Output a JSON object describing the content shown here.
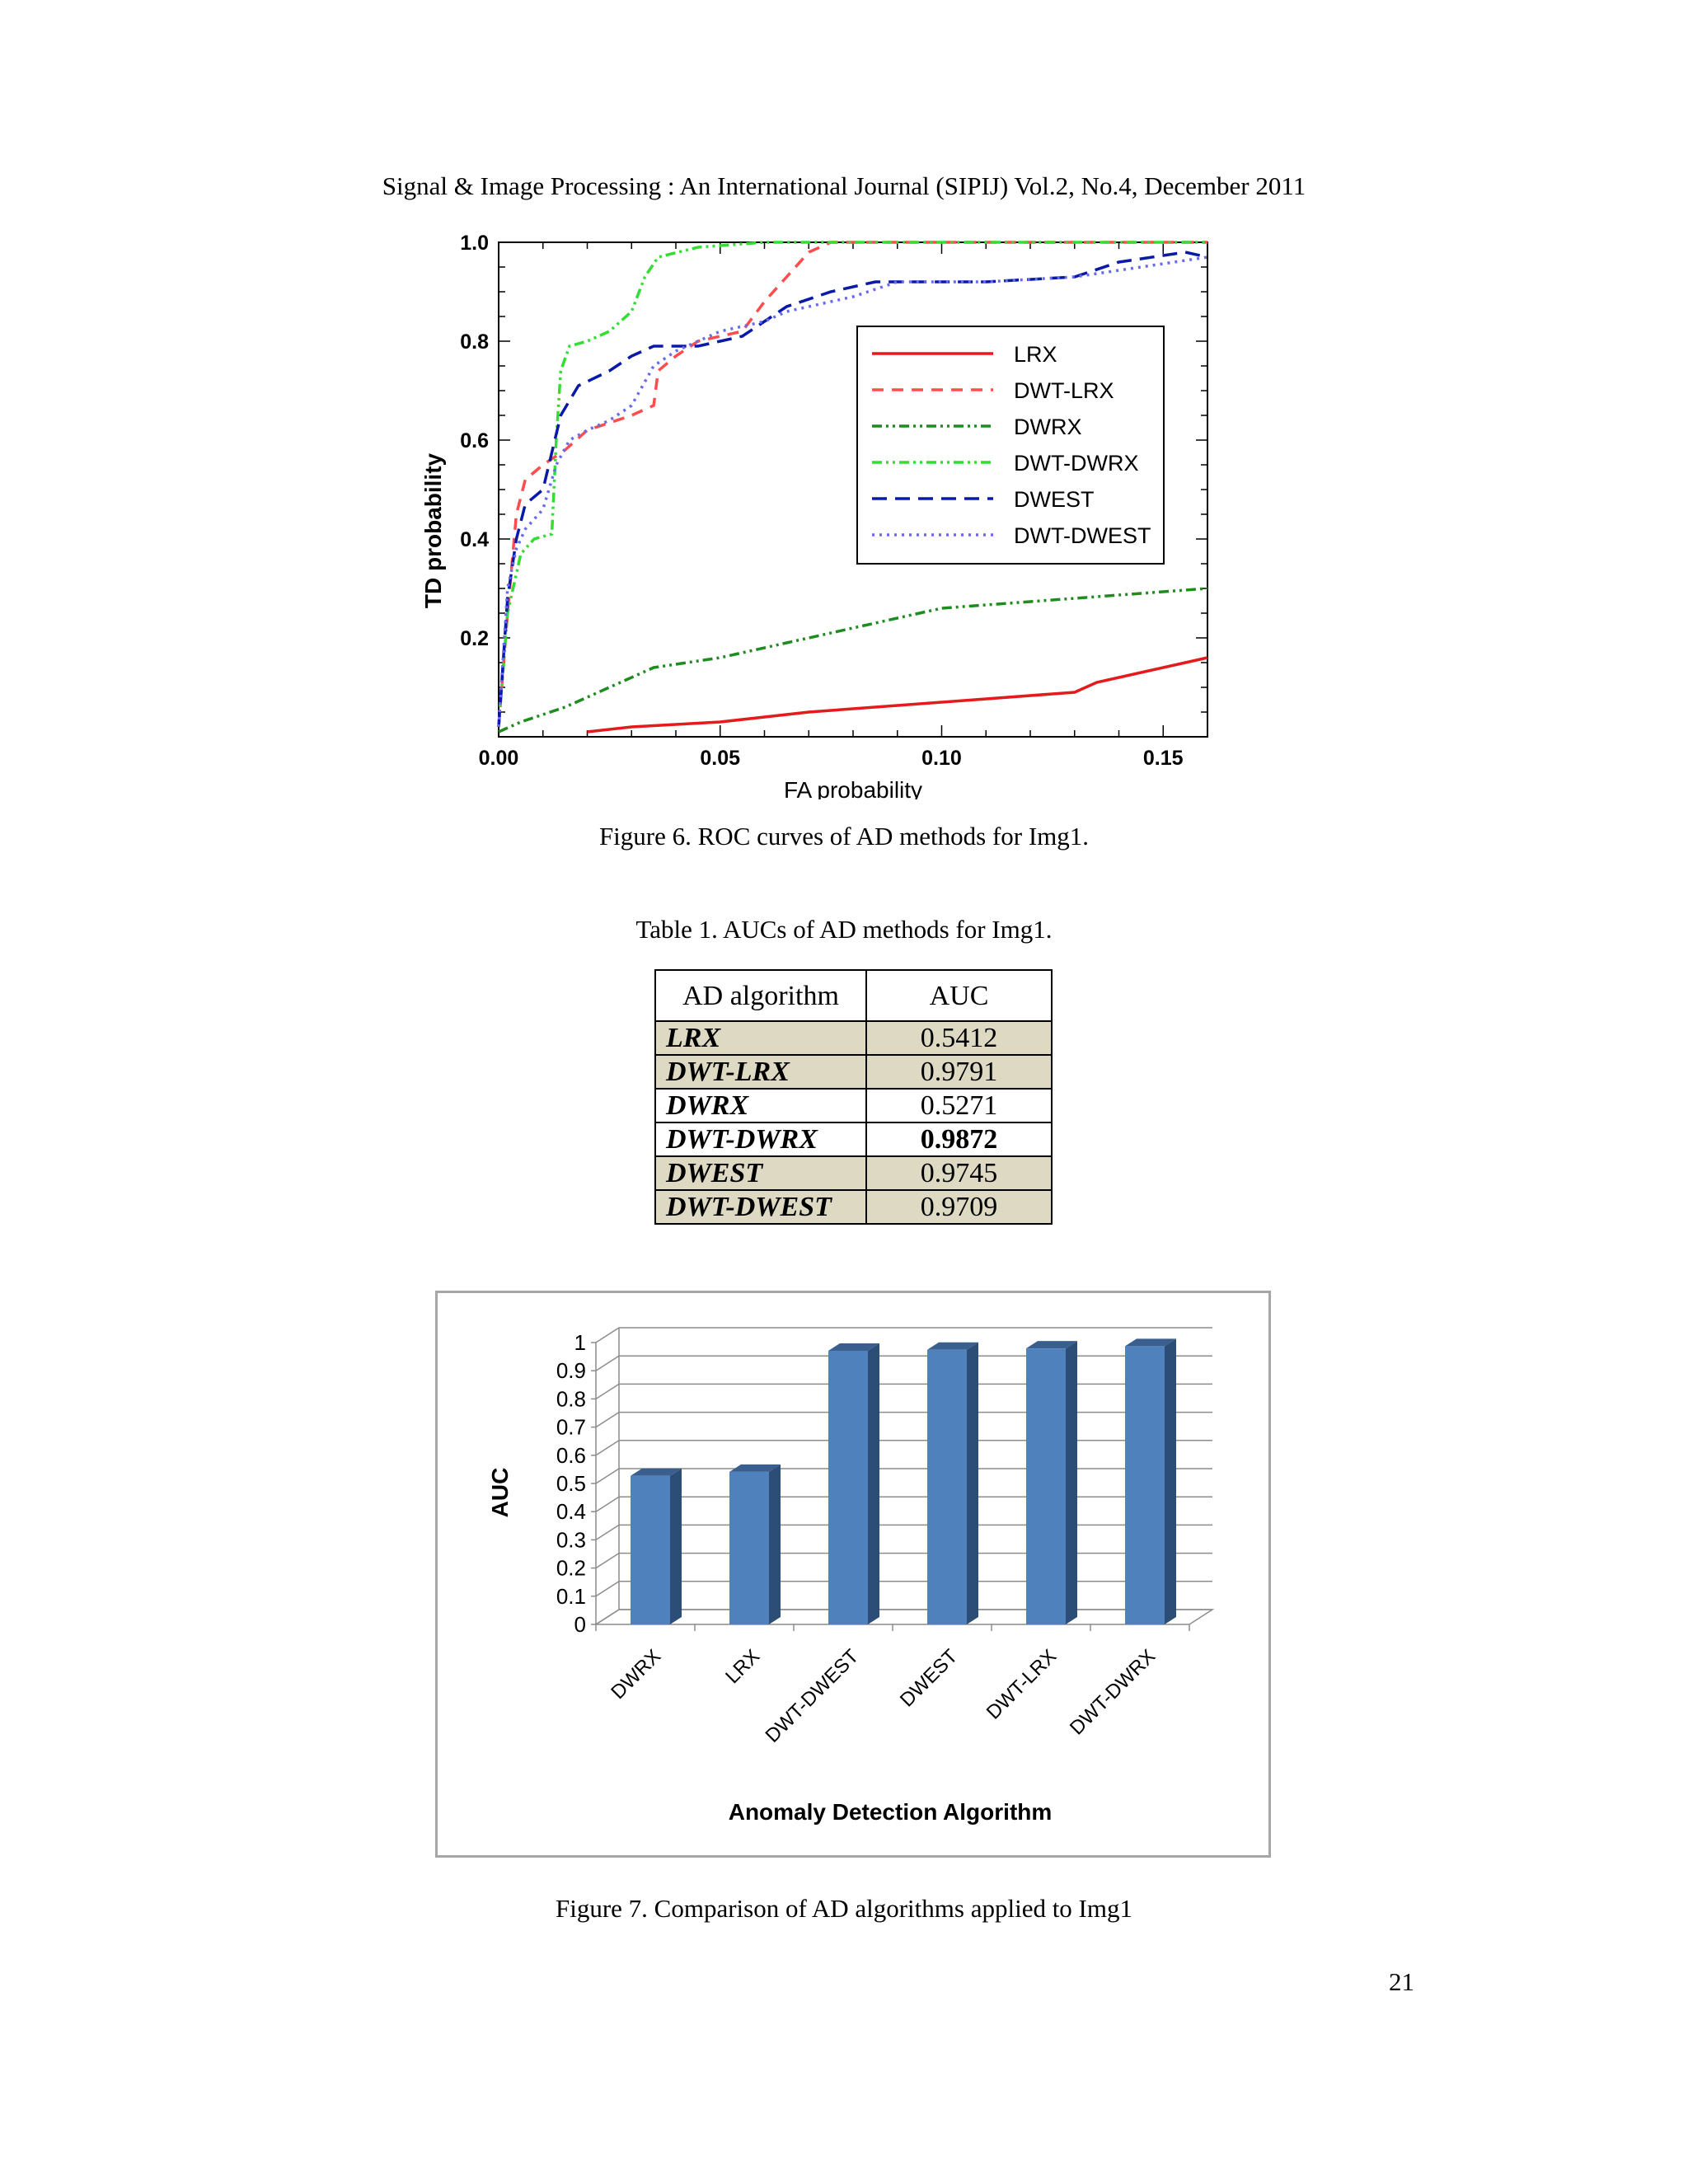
{
  "header": {
    "text": "Signal & Image Processing : An International Journal (SIPIJ) Vol.2, No.4, December 2011"
  },
  "figure6": {
    "caption": "Figure 6. ROC curves of AD methods for Img1.",
    "chart_data": {
      "type": "line",
      "xlabel": "FA probability",
      "ylabel": "TD probability",
      "xlim": [
        0,
        0.16
      ],
      "ylim": [
        0,
        1.0
      ],
      "xticks": [
        "0.00",
        "0.05",
        "0.10",
        "0.15"
      ],
      "yticks": [
        "0.2",
        "0.4",
        "0.6",
        "0.8",
        "1.0"
      ],
      "grid": false,
      "legend_position": "right",
      "series": [
        {
          "name": "LRX",
          "color": "#e41a1c",
          "dash": "none",
          "points": [
            [
              0.02,
              0.01
            ],
            [
              0.03,
              0.02
            ],
            [
              0.05,
              0.03
            ],
            [
              0.07,
              0.05
            ],
            [
              0.1,
              0.07
            ],
            [
              0.13,
              0.09
            ],
            [
              0.135,
              0.11
            ],
            [
              0.145,
              0.13
            ],
            [
              0.16,
              0.16
            ]
          ]
        },
        {
          "name": "DWT-LRX",
          "color": "#ff4d4d",
          "dash": "14,10",
          "points": [
            [
              0,
              0.02
            ],
            [
              0.002,
              0.25
            ],
            [
              0.004,
              0.45
            ],
            [
              0.006,
              0.52
            ],
            [
              0.01,
              0.55
            ],
            [
              0.015,
              0.58
            ],
            [
              0.02,
              0.62
            ],
            [
              0.03,
              0.65
            ],
            [
              0.035,
              0.67
            ],
            [
              0.036,
              0.74
            ],
            [
              0.04,
              0.77
            ],
            [
              0.045,
              0.8
            ],
            [
              0.055,
              0.82
            ],
            [
              0.06,
              0.88
            ],
            [
              0.065,
              0.93
            ],
            [
              0.07,
              0.98
            ],
            [
              0.075,
              1.0
            ],
            [
              0.16,
              1.0
            ]
          ]
        },
        {
          "name": "DWRX",
          "color": "#1e8c1e",
          "dash": "12,5,3,5,3,5",
          "points": [
            [
              0,
              0.01
            ],
            [
              0.005,
              0.03
            ],
            [
              0.015,
              0.06
            ],
            [
              0.025,
              0.1
            ],
            [
              0.035,
              0.14
            ],
            [
              0.05,
              0.16
            ],
            [
              0.065,
              0.19
            ],
            [
              0.08,
              0.22
            ],
            [
              0.1,
              0.26
            ],
            [
              0.115,
              0.27
            ],
            [
              0.13,
              0.28
            ],
            [
              0.145,
              0.29
            ],
            [
              0.16,
              0.3
            ]
          ]
        },
        {
          "name": "DWT-DWRX",
          "color": "#33dd33",
          "dash": "12,5,3,5,3,5",
          "points": [
            [
              0,
              0.02
            ],
            [
              0.002,
              0.25
            ],
            [
              0.005,
              0.37
            ],
            [
              0.008,
              0.4
            ],
            [
              0.012,
              0.41
            ],
            [
              0.013,
              0.6
            ],
            [
              0.014,
              0.74
            ],
            [
              0.016,
              0.79
            ],
            [
              0.02,
              0.8
            ],
            [
              0.025,
              0.82
            ],
            [
              0.03,
              0.86
            ],
            [
              0.033,
              0.93
            ],
            [
              0.036,
              0.97
            ],
            [
              0.045,
              0.99
            ],
            [
              0.06,
              1.0
            ],
            [
              0.16,
              1.0
            ]
          ]
        },
        {
          "name": "DWEST",
          "color": "#0a1aa8",
          "dash": "18,10",
          "points": [
            [
              0,
              0.02
            ],
            [
              0.002,
              0.28
            ],
            [
              0.004,
              0.4
            ],
            [
              0.006,
              0.47
            ],
            [
              0.01,
              0.5
            ],
            [
              0.014,
              0.65
            ],
            [
              0.018,
              0.71
            ],
            [
              0.025,
              0.74
            ],
            [
              0.03,
              0.77
            ],
            [
              0.035,
              0.79
            ],
            [
              0.045,
              0.79
            ],
            [
              0.05,
              0.8
            ],
            [
              0.055,
              0.81
            ],
            [
              0.06,
              0.84
            ],
            [
              0.065,
              0.87
            ],
            [
              0.075,
              0.9
            ],
            [
              0.085,
              0.92
            ],
            [
              0.11,
              0.92
            ],
            [
              0.13,
              0.93
            ],
            [
              0.14,
              0.96
            ],
            [
              0.155,
              0.98
            ],
            [
              0.16,
              0.97
            ]
          ]
        },
        {
          "name": "DWT-DWEST",
          "color": "#6a6aef",
          "dash": "3,6",
          "points": [
            [
              0,
              0.02
            ],
            [
              0.002,
              0.3
            ],
            [
              0.004,
              0.38
            ],
            [
              0.006,
              0.42
            ],
            [
              0.01,
              0.46
            ],
            [
              0.013,
              0.55
            ],
            [
              0.016,
              0.6
            ],
            [
              0.02,
              0.62
            ],
            [
              0.025,
              0.64
            ],
            [
              0.03,
              0.67
            ],
            [
              0.035,
              0.75
            ],
            [
              0.04,
              0.78
            ],
            [
              0.05,
              0.82
            ],
            [
              0.06,
              0.84
            ],
            [
              0.065,
              0.86
            ],
            [
              0.08,
              0.89
            ],
            [
              0.09,
              0.92
            ],
            [
              0.11,
              0.92
            ],
            [
              0.13,
              0.93
            ],
            [
              0.145,
              0.95
            ],
            [
              0.16,
              0.97
            ]
          ]
        }
      ]
    }
  },
  "table1": {
    "caption": "Table 1. AUCs of AD methods for Img1.",
    "headers": [
      "AD algorithm",
      "AUC"
    ],
    "rows": [
      {
        "alg": "LRX",
        "auc": "0.5412"
      },
      {
        "alg": "DWT-LRX",
        "auc": "0.9791"
      },
      {
        "alg": "DWRX",
        "auc": "0.5271"
      },
      {
        "alg": "DWT-DWRX",
        "auc": "0.9872"
      },
      {
        "alg": "DWEST",
        "auc": "0.9745"
      },
      {
        "alg": "DWT-DWEST",
        "auc": "0.9709"
      }
    ]
  },
  "figure7": {
    "caption": "Figure 7. Comparison of AD algorithms applied to Img1",
    "chart_data": {
      "type": "bar",
      "categories": [
        "DWRX",
        "LRX",
        "DWT-DWEST",
        "DWEST",
        "DWT-LRX",
        "DWT-DWRX"
      ],
      "values": [
        0.5271,
        0.5412,
        0.9709,
        0.9745,
        0.9791,
        0.9872
      ],
      "xlabel": "Anomaly Detection Algorithm",
      "ylabel": "AUC",
      "ylim": [
        0,
        1
      ],
      "yticks": [
        "0",
        "0.1",
        "0.2",
        "0.3",
        "0.4",
        "0.5",
        "0.6",
        "0.7",
        "0.8",
        "0.9",
        "1"
      ],
      "bar_color": "#4f81bd",
      "grid": true
    }
  },
  "page_number": "21"
}
